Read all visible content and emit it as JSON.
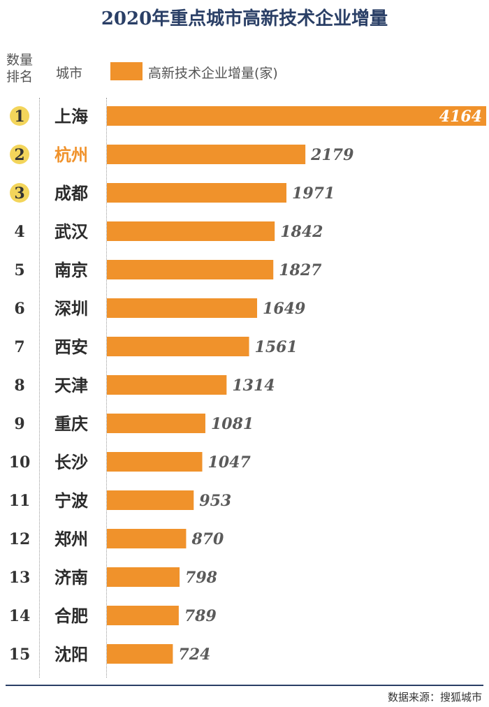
{
  "header": {
    "rank_label_line1": "数量",
    "rank_label_line2": "排名",
    "city_label": "城市"
  },
  "chart_data": {
    "type": "bar",
    "orientation": "horizontal",
    "title": "2020年重点城市高新技术企业增量",
    "legend": "高新技术企业增量(家)",
    "ranks": [
      1,
      2,
      3,
      4,
      5,
      6,
      7,
      8,
      9,
      10,
      11,
      12,
      13,
      14,
      15
    ],
    "categories": [
      "上海",
      "杭州",
      "成都",
      "武汉",
      "南京",
      "深圳",
      "西安",
      "天津",
      "重庆",
      "长沙",
      "宁波",
      "郑州",
      "济南",
      "合肥",
      "沈阳"
    ],
    "values": [
      4164,
      2179,
      1971,
      1842,
      1827,
      1649,
      1561,
      1314,
      1081,
      1047,
      953,
      870,
      798,
      789,
      724
    ],
    "highlighted_category": "杭州",
    "top_ranks_marked": 3,
    "xlim": [
      0,
      4164
    ],
    "grid": false
  },
  "colors": {
    "bar": "#f0922b",
    "rank_badge": "#f3d55b",
    "highlight_text": "#f0922b",
    "title": "#2a3f66",
    "value_text": "#5a5a5a"
  },
  "footer": {
    "source": "数据来源：搜狐城市"
  }
}
